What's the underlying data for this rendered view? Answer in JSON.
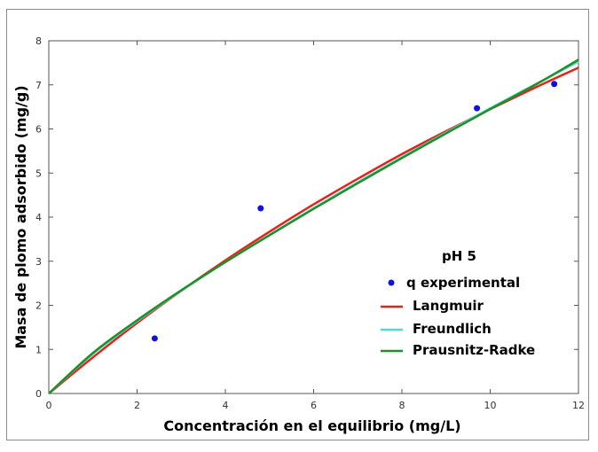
{
  "chart_data": {
    "type": "line",
    "xlabel": "Concentración en el equilibrio (mg/L)",
    "ylabel": "Masa de plomo adsorbido (mg/g)",
    "xlim": [
      0,
      12
    ],
    "ylim": [
      0,
      8
    ],
    "xticks": [
      "0",
      "2",
      "4",
      "6",
      "8",
      "10",
      "12"
    ],
    "yticks": [
      "0",
      "1",
      "2",
      "3",
      "4",
      "5",
      "6",
      "7",
      "8"
    ],
    "grid": false,
    "legend_title": "pH 5",
    "legend_position": "center-right",
    "scatter": {
      "name": "q experimental",
      "color": "#1010e0",
      "points": [
        {
          "x": 2.4,
          "y": 1.25
        },
        {
          "x": 4.8,
          "y": 4.2
        },
        {
          "x": 9.7,
          "y": 6.47
        },
        {
          "x": 11.45,
          "y": 7.02
        }
      ]
    },
    "series": [
      {
        "name": "Langmuir",
        "color": "#e8201a",
        "x": [
          0,
          1,
          2,
          3,
          4,
          5,
          6,
          7,
          8,
          9,
          10,
          11,
          12
        ],
        "y": [
          0,
          0.82,
          1.6,
          2.33,
          3.02,
          3.67,
          4.29,
          4.87,
          5.43,
          5.95,
          6.45,
          6.93,
          7.39
        ]
      },
      {
        "name": "Freundlich",
        "color": "#56d8cf",
        "x": [
          0,
          1,
          2,
          3,
          4,
          5,
          6,
          7,
          8,
          9,
          10,
          11,
          12
        ],
        "y": [
          0,
          0.9,
          1.64,
          2.33,
          2.98,
          3.6,
          4.2,
          4.79,
          5.36,
          5.92,
          6.47,
          7.0,
          7.53
        ]
      },
      {
        "name": "Prausnitz-Radke",
        "color": "#1f8f2a",
        "x": [
          0,
          1,
          2,
          3,
          4,
          5,
          6,
          7,
          8,
          9,
          10,
          11,
          12
        ],
        "y": [
          0,
          0.92,
          1.66,
          2.34,
          2.98,
          3.59,
          4.19,
          4.77,
          5.34,
          5.9,
          6.45,
          6.99,
          7.57
        ]
      }
    ]
  }
}
